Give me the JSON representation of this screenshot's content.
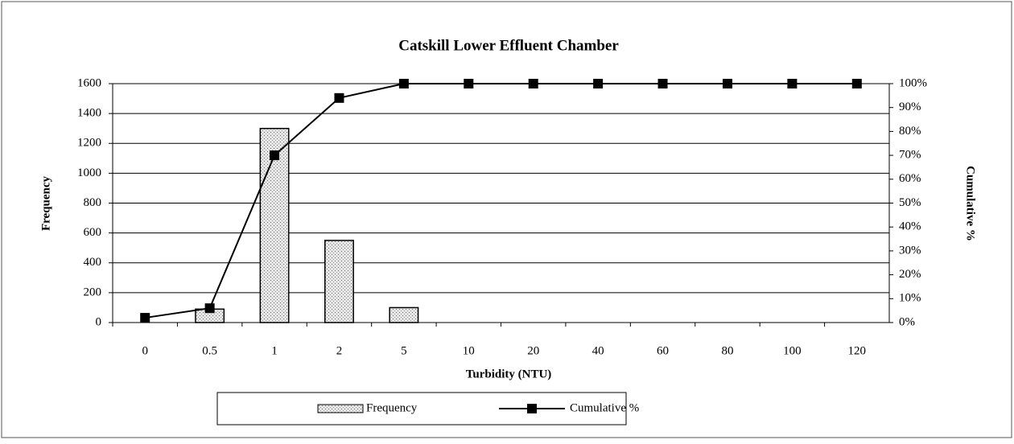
{
  "chart_data": {
    "type": "bar-line",
    "title": "Catskill Lower Effluent Chamber",
    "x_label": "Turbidity (NTU)",
    "y_label": "Frequency",
    "y2_label": "Cumulative %",
    "categories": [
      "0",
      "0.5",
      "1",
      "2",
      "5",
      "10",
      "20",
      "40",
      "60",
      "80",
      "100",
      "120"
    ],
    "series": [
      {
        "name": "Frequency",
        "type": "bar",
        "color": "#d8d8d8",
        "values": [
          0,
          90,
          1300,
          550,
          100,
          0,
          0,
          0,
          0,
          0,
          0,
          0
        ]
      },
      {
        "name": "Cumulative %",
        "type": "line",
        "axis": "y2",
        "color": "#000000",
        "values": [
          2,
          6,
          70,
          94,
          100,
          100,
          100,
          100,
          100,
          100,
          100,
          100
        ]
      }
    ],
    "ylim": [
      0,
      1600
    ],
    "yticks": [
      0,
      200,
      400,
      600,
      800,
      1000,
      1200,
      1400,
      1600
    ],
    "y2lim": [
      0,
      100
    ],
    "y2ticks": [
      {
        "value": 0,
        "label": "0%"
      },
      {
        "value": 10,
        "label": "10%"
      },
      {
        "value": 20,
        "label": "20%"
      },
      {
        "value": 30,
        "label": "30%"
      },
      {
        "value": 40,
        "label": "40%"
      },
      {
        "value": 50,
        "label": "50%"
      },
      {
        "value": 60,
        "label": "60%"
      },
      {
        "value": 70,
        "label": "70%"
      },
      {
        "value": 80,
        "label": "80%"
      },
      {
        "value": 90,
        "label": "90%"
      },
      {
        "value": 100,
        "label": "100%"
      }
    ],
    "grid": true
  }
}
